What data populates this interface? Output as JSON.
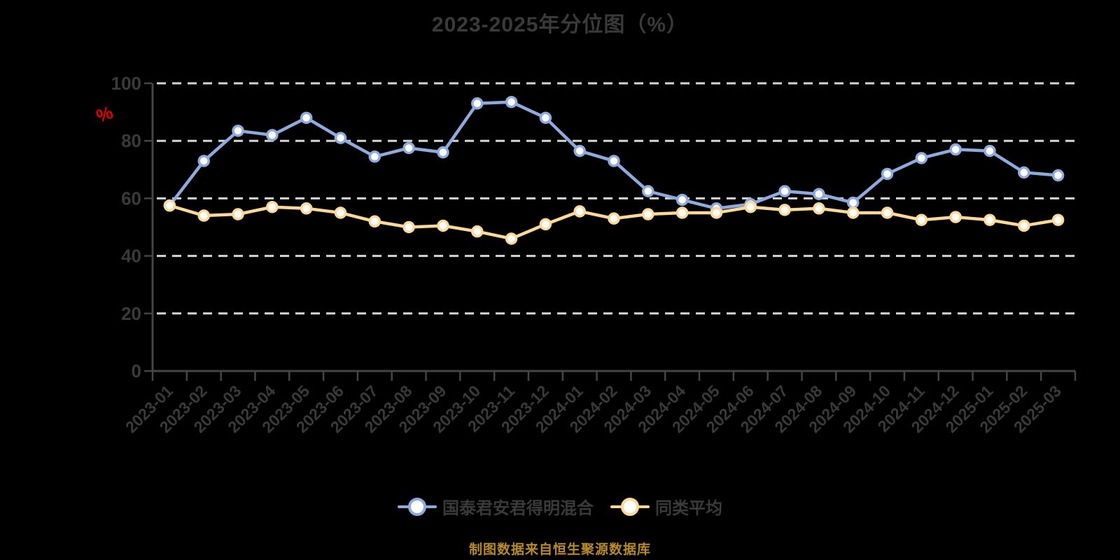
{
  "title": "2023-2025年分位图（%）",
  "footer": "制图数据来自恒生聚源数据库",
  "colors": {
    "background": "#000000",
    "text": "#3a3a3a",
    "axis": "#454545",
    "grid": "#d6d6d6",
    "unit_label": "#e60000",
    "footer": "#b88a2b"
  },
  "chart_data": {
    "type": "line",
    "title": "2023-2025年分位图（%）",
    "xlabel": "",
    "ylabel": "%",
    "ylim": [
      0,
      100
    ],
    "yticks": [
      0,
      20,
      40,
      60,
      80,
      100
    ],
    "grid": "horizontal-dashed",
    "legend_position": "bottom",
    "marker": "circle-white-fill",
    "categories": [
      "2023-01",
      "2023-02",
      "2023-03",
      "2023-04",
      "2023-05",
      "2023-06",
      "2023-07",
      "2023-08",
      "2023-09",
      "2023-10",
      "2023-11",
      "2023-12",
      "2024-01",
      "2024-02",
      "2024-03",
      "2024-04",
      "2024-05",
      "2024-06",
      "2024-07",
      "2024-08",
      "2024-09",
      "2024-10",
      "2024-11",
      "2024-12",
      "2025-01",
      "2025-02",
      "2025-03"
    ],
    "series": [
      {
        "name": "国泰君安君得明混合",
        "color": "#8faadc",
        "values": [
          57.5,
          73,
          83.5,
          82,
          88,
          81,
          74.5,
          77.5,
          76,
          93,
          93.5,
          88,
          76.5,
          73,
          62.5,
          59.5,
          56.5,
          58,
          62.5,
          61.5,
          58.5,
          68.5,
          74,
          77,
          76.5,
          69,
          68
        ]
      },
      {
        "name": "同类平均",
        "color": "#fcd99b",
        "values": [
          57.5,
          54,
          54.5,
          57,
          56.5,
          55,
          52,
          50,
          50.5,
          48.5,
          46,
          51,
          55.5,
          53,
          54.5,
          55,
          55,
          57,
          56,
          56.5,
          55,
          55,
          52.5,
          53.5,
          52.5,
          50.5,
          52.5
        ]
      }
    ]
  }
}
